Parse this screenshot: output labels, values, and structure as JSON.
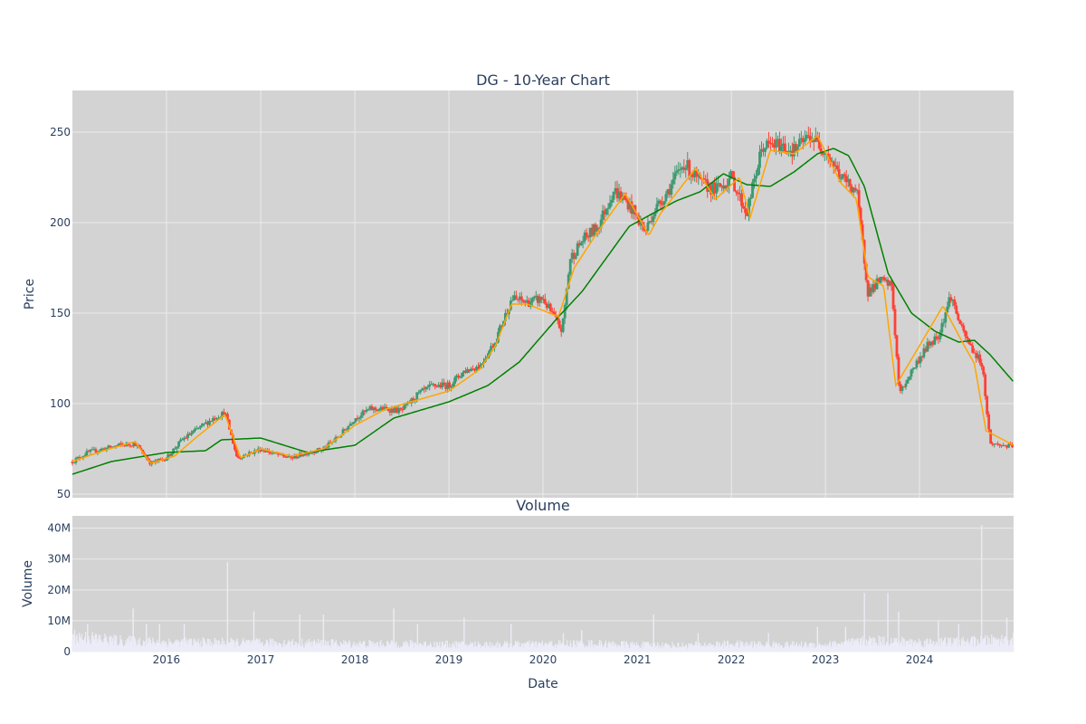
{
  "chart_data": [
    {
      "type": "candlestick",
      "title": "DG - 10-Year Chart",
      "ylabel": "Price",
      "xlabel": "",
      "x_range": [
        "2015-01-01",
        "2024-12-31"
      ],
      "ylim": [
        48,
        273
      ],
      "yticks": [
        50,
        100,
        150,
        200,
        250
      ],
      "grid": true,
      "legend": "none",
      "colors": {
        "increasing": "#3d9970",
        "decreasing": "#ff4136",
        "ma_short": "#ffa500",
        "ma_long": "#008000",
        "plot_bg": "#d3d3d3"
      },
      "series": [
        {
          "kind": "close",
          "x": [
            "2015-01-01",
            "2015-03-01",
            "2015-05-01",
            "2015-07-01",
            "2015-09-01",
            "2015-11-01",
            "2016-01-01",
            "2016-03-01",
            "2016-05-01",
            "2016-07-01",
            "2016-08-15",
            "2016-10-01",
            "2017-01-01",
            "2017-03-01",
            "2017-05-01",
            "2017-07-01",
            "2017-09-01",
            "2017-11-01",
            "2018-01-01",
            "2018-03-01",
            "2018-05-01",
            "2018-07-01",
            "2018-09-01",
            "2018-11-01",
            "2019-01-01",
            "2019-03-01",
            "2019-05-01",
            "2019-07-01",
            "2019-09-01",
            "2019-11-01",
            "2020-01-01",
            "2020-03-15",
            "2020-04-15",
            "2020-06-01",
            "2020-08-01",
            "2020-10-01",
            "2020-12-01",
            "2021-02-01",
            "2021-03-01",
            "2021-05-01",
            "2021-07-01",
            "2021-09-01",
            "2021-11-01",
            "2022-01-01",
            "2022-03-01",
            "2022-05-01",
            "2022-07-01",
            "2022-09-01",
            "2022-11-01",
            "2023-01-01",
            "2023-03-01",
            "2023-05-01",
            "2023-06-15",
            "2023-08-01",
            "2023-09-15",
            "2023-10-15",
            "2023-12-01",
            "2024-02-01",
            "2024-03-15",
            "2024-05-01",
            "2024-06-15",
            "2024-08-01",
            "2024-08-31",
            "2024-10-01",
            "2024-12-31"
          ],
          "y": [
            68,
            73,
            75,
            77,
            78,
            67,
            70,
            80,
            86,
            92,
            95,
            70,
            75,
            72,
            70,
            73,
            75,
            82,
            92,
            97,
            97,
            96,
            105,
            110,
            110,
            118,
            121,
            135,
            158,
            156,
            158,
            140,
            180,
            190,
            198,
            218,
            210,
            195,
            205,
            218,
            233,
            222,
            218,
            225,
            205,
            242,
            243,
            240,
            248,
            240,
            225,
            218,
            162,
            168,
            165,
            105,
            118,
            132,
            138,
            160,
            140,
            128,
            122,
            78,
            76
          ]
        },
        {
          "kind": "ma_short",
          "x": [
            "2015-01-01",
            "2015-05-01",
            "2015-09-01",
            "2015-11-01",
            "2016-02-01",
            "2016-05-01",
            "2016-08-15",
            "2016-10-15",
            "2017-01-01",
            "2017-05-01",
            "2017-09-01",
            "2018-01-01",
            "2018-05-01",
            "2018-09-01",
            "2019-01-01",
            "2019-05-01",
            "2019-07-01",
            "2019-09-01",
            "2019-11-01",
            "2020-03-01",
            "2020-05-01",
            "2020-08-01",
            "2020-11-15",
            "2021-02-15",
            "2021-04-01",
            "2021-08-15",
            "2021-11-01",
            "2022-02-01",
            "2022-03-15",
            "2022-06-01",
            "2022-09-01",
            "2022-12-01",
            "2023-03-01",
            "2023-05-01",
            "2023-06-15",
            "2023-08-15",
            "2023-10-01",
            "2024-01-01",
            "2024-04-01",
            "2024-06-15",
            "2024-08-01",
            "2024-09-15",
            "2024-12-31"
          ],
          "y": [
            68,
            74,
            79,
            67,
            71,
            82,
            94,
            70,
            75,
            71,
            75,
            88,
            97,
            102,
            107,
            119,
            132,
            155,
            155,
            148,
            175,
            195,
            216,
            193,
            205,
            230,
            213,
            225,
            203,
            240,
            238,
            248,
            222,
            213,
            170,
            165,
            110,
            132,
            154,
            134,
            122,
            85,
            77
          ]
        },
        {
          "kind": "ma_long",
          "x": [
            "2015-01-01",
            "2015-06-01",
            "2016-01-01",
            "2016-06-01",
            "2016-08-01",
            "2017-01-01",
            "2017-07-01",
            "2018-01-01",
            "2018-06-01",
            "2019-01-01",
            "2019-06-01",
            "2019-10-01",
            "2020-03-01",
            "2020-06-01",
            "2020-12-01",
            "2021-03-01",
            "2021-06-01",
            "2021-09-01",
            "2021-12-01",
            "2022-03-01",
            "2022-06-01",
            "2022-09-01",
            "2022-12-01",
            "2023-02-01",
            "2023-04-01",
            "2023-06-01",
            "2023-09-01",
            "2023-12-01",
            "2024-03-01",
            "2024-06-01",
            "2024-08-01",
            "2024-10-01",
            "2024-12-31"
          ],
          "y": [
            61,
            68,
            73,
            74,
            80,
            81,
            73,
            77,
            92,
            101,
            110,
            123,
            148,
            162,
            198,
            205,
            212,
            217,
            227,
            221,
            220,
            228,
            238,
            241,
            237,
            220,
            172,
            150,
            140,
            134,
            135,
            127,
            112
          ]
        }
      ]
    },
    {
      "type": "bar",
      "title": "Volume",
      "ylabel": "Volume",
      "xlabel": "Date",
      "ylim": [
        0,
        44
      ],
      "yticks": [
        0,
        10,
        20,
        30,
        40
      ],
      "ytick_labels": [
        "0",
        "10M",
        "20M",
        "30M",
        "40M"
      ],
      "x_range": [
        "2015-01-01",
        "2024-12-31"
      ],
      "xticks": [
        "2016",
        "2017",
        "2018",
        "2019",
        "2020",
        "2021",
        "2022",
        "2023",
        "2024"
      ],
      "grid": true,
      "colors": {
        "bar": "#ececf8",
        "plot_bg": "#d3d3d3"
      },
      "series": [
        {
          "kind": "baseline",
          "x": [
            "2015-01-01",
            "2015-07-01",
            "2016-01-01",
            "2016-07-01",
            "2017-01-01",
            "2017-07-01",
            "2018-01-01",
            "2018-07-01",
            "2019-01-01",
            "2019-07-01",
            "2020-01-01",
            "2020-07-01",
            "2021-01-01",
            "2021-07-01",
            "2022-01-01",
            "2022-07-01",
            "2023-01-01",
            "2023-07-01",
            "2024-01-01",
            "2024-07-01",
            "2024-12-31"
          ],
          "y": [
            5,
            3.5,
            3,
            3,
            2.8,
            2.8,
            2.5,
            2.5,
            2.3,
            2.3,
            2.4,
            2.6,
            2.2,
            2.0,
            2.4,
            2.2,
            2.2,
            3.5,
            3.0,
            3.2,
            4
          ]
        },
        {
          "kind": "spikes",
          "x": [
            "2015-03-01",
            "2015-08-25",
            "2015-10-15",
            "2015-12-05",
            "2016-03-10",
            "2016-08-25",
            "2016-12-05",
            "2017-06-01",
            "2017-09-01",
            "2018-06-01",
            "2018-09-01",
            "2019-03-01",
            "2019-08-30",
            "2020-03-20",
            "2020-05-30",
            "2021-03-05",
            "2021-08-25",
            "2022-05-25",
            "2022-12-01",
            "2023-03-20",
            "2023-06-01",
            "2023-08-31",
            "2023-10-12",
            "2024-03-14",
            "2024-06-01",
            "2024-08-29",
            "2024-12-05"
          ],
          "y": [
            9,
            14,
            9,
            9,
            9,
            29,
            13,
            12,
            12,
            14,
            9,
            11,
            9,
            6,
            7,
            12,
            6,
            6,
            8,
            8,
            19,
            19,
            13,
            10,
            9,
            41,
            11
          ]
        }
      ]
    }
  ]
}
